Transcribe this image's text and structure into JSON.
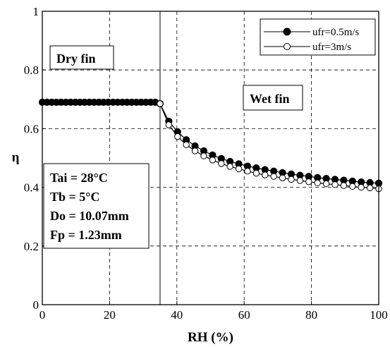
{
  "chart_data": {
    "type": "line",
    "xlabel": "RH (%)",
    "ylabel": "η",
    "xlim": [
      0,
      100
    ],
    "ylim": [
      0,
      1
    ],
    "xticks": [
      "0",
      "20",
      "40",
      "60",
      "80",
      "100"
    ],
    "yticks": [
      "0",
      "0.2",
      "0.4",
      "0.6",
      "0.8",
      "1"
    ],
    "grid": true,
    "legend_position": "top-right",
    "vline_x": 35,
    "annotations": {
      "dry": "Dry fin",
      "wet": "Wet fin",
      "params": [
        "Tai = 28°C",
        "Tb = 5°C",
        "Do = 10.07mm",
        "Fp = 1.23mm"
      ]
    },
    "series": [
      {
        "name": "ufr=0.5m/s",
        "marker": "filled-circle",
        "x": [
          0,
          1.4,
          2.8,
          4.2,
          5.6,
          7,
          8.4,
          9.8,
          11.2,
          12.6,
          14,
          15.4,
          16.8,
          18.2,
          19.6,
          21,
          22.4,
          23.8,
          25.2,
          26.6,
          28,
          29.4,
          30.8,
          32.2,
          33.6,
          35,
          37.6,
          40.2,
          42.8,
          45.4,
          48,
          50.6,
          53.2,
          55.8,
          58.4,
          61,
          63.6,
          66.2,
          68.8,
          71.4,
          74,
          76.6,
          79.2,
          81.8,
          84.4,
          87,
          89.6,
          92.2,
          94.8,
          97.4,
          100
        ],
        "y": [
          0.69,
          0.69,
          0.69,
          0.69,
          0.69,
          0.69,
          0.69,
          0.69,
          0.69,
          0.69,
          0.69,
          0.69,
          0.69,
          0.69,
          0.69,
          0.69,
          0.69,
          0.69,
          0.69,
          0.69,
          0.69,
          0.69,
          0.69,
          0.69,
          0.69,
          0.685,
          0.625,
          0.589,
          0.562,
          0.541,
          0.524,
          0.51,
          0.498,
          0.488,
          0.48,
          0.472,
          0.466,
          0.46,
          0.455,
          0.45,
          0.445,
          0.441,
          0.437,
          0.433,
          0.43,
          0.427,
          0.424,
          0.421,
          0.418,
          0.416,
          0.414
        ]
      },
      {
        "name": "ufr=3m/s",
        "marker": "open-circle",
        "x": [
          35,
          37.6,
          40.2,
          42.8,
          45.4,
          48,
          50.6,
          53.2,
          55.8,
          58.4,
          61,
          63.6,
          66.2,
          68.8,
          71.4,
          74,
          76.6,
          79.2,
          81.8,
          84.4,
          87,
          89.6,
          92.2,
          94.8,
          97.4,
          100
        ],
        "y": [
          0.685,
          0.613,
          0.573,
          0.545,
          0.524,
          0.507,
          0.493,
          0.481,
          0.471,
          0.463,
          0.455,
          0.448,
          0.442,
          0.437,
          0.432,
          0.427,
          0.423,
          0.419,
          0.415,
          0.412,
          0.409,
          0.406,
          0.403,
          0.4,
          0.398,
          0.395
        ]
      }
    ]
  }
}
